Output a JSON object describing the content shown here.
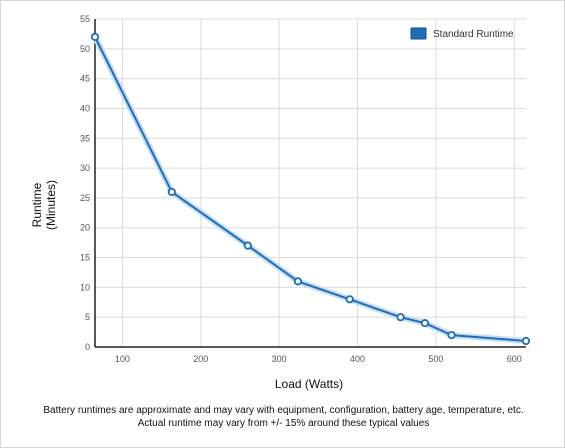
{
  "chart_data": {
    "type": "line",
    "title": "",
    "xlabel": "Load (Watts)",
    "ylabel_lines": [
      "Runtime",
      "(Minutes)"
    ],
    "xlim": [
      65,
      615
    ],
    "ylim": [
      0,
      55
    ],
    "xticks": [
      100,
      200,
      300,
      400,
      500,
      600
    ],
    "yticks": [
      0,
      5,
      10,
      15,
      20,
      25,
      30,
      35,
      40,
      45,
      50,
      55
    ],
    "grid": true,
    "legend_position": "top-right",
    "series": [
      {
        "name": "Standard Runtime",
        "color": "#1f6db5",
        "x": [
          65,
          163,
          260,
          324,
          390,
          455,
          486,
          520,
          615
        ],
        "y": [
          52,
          26,
          17,
          11,
          8,
          5,
          4,
          2,
          1
        ]
      }
    ]
  },
  "footnote": {
    "line1": "Battery runtimes are approximate and may vary with equipment, configuration, battery age, temperature, etc.",
    "line2": "Actual runtime may vary from +/- 15% around these typical values"
  }
}
